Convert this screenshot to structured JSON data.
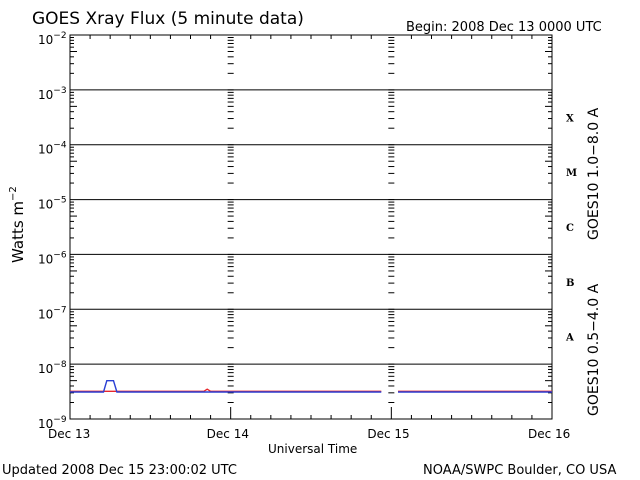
{
  "header": {
    "title": "GOES Xray Flux (5 minute data)",
    "begin": "Begin:  2008 Dec 13 0000 UTC"
  },
  "footer": {
    "updated": "Updated 2008 Dec 15 23:00:02 UTC",
    "credit": "NOAA/SWPC Boulder, CO USA"
  },
  "axes": {
    "ylabel_main": "Watts m",
    "ylabel_exp": "−2",
    "xlabel": "Universal Time",
    "x_ticks": [
      "Dec 13",
      "Dec 14",
      "Dec 15",
      "Dec 16"
    ],
    "y_ticks": [
      {
        "base": "10",
        "exp": "−2"
      },
      {
        "base": "10",
        "exp": "−3"
      },
      {
        "base": "10",
        "exp": "−4"
      },
      {
        "base": "10",
        "exp": "−5"
      },
      {
        "base": "10",
        "exp": "−6"
      },
      {
        "base": "10",
        "exp": "−7"
      },
      {
        "base": "10",
        "exp": "−8"
      },
      {
        "base": "10",
        "exp": "−9"
      }
    ],
    "flare_classes": [
      "X",
      "M",
      "C",
      "B",
      "A"
    ]
  },
  "legend": {
    "long": {
      "label": "GOES10 1.0−8.0 A",
      "color": "#e8262b"
    },
    "short": {
      "label": "GOES10 0.5−4.0 A",
      "color": "#2a3fd4"
    }
  },
  "chart_data": {
    "type": "line",
    "title": "GOES Xray Flux (5 minute data)",
    "xlabel": "Universal Time",
    "ylabel": "Watts m-2",
    "yscale": "log",
    "ylim": [
      1e-09,
      0.01
    ],
    "xlim": [
      "2008-12-13 00:00",
      "2008-12-16 00:00"
    ],
    "grid": true,
    "series": [
      {
        "name": "GOES10 1.0−8.0 A",
        "color": "#e8262b",
        "points": [
          [
            "2008-12-13 00:00",
            3.2e-09
          ],
          [
            "2008-12-13 20:00",
            3.2e-09
          ],
          [
            "2008-12-13 20:30",
            3.5e-09
          ],
          [
            "2008-12-13 21:00",
            3.2e-09
          ],
          [
            "2008-12-14 22:30",
            3.2e-09
          ],
          null,
          [
            "2008-12-15 01:00",
            3.2e-09
          ],
          [
            "2008-12-16 00:00",
            3.2e-09
          ]
        ]
      },
      {
        "name": "GOES10 0.5−4.0 A",
        "color": "#2a3fd4",
        "points": [
          [
            "2008-12-13 00:00",
            3.1e-09
          ],
          [
            "2008-12-13 05:00",
            3.1e-09
          ],
          [
            "2008-12-13 05:30",
            5e-09
          ],
          [
            "2008-12-13 06:30",
            5e-09
          ],
          [
            "2008-12-13 07:00",
            3.1e-09
          ],
          [
            "2008-12-14 22:30",
            3.1e-09
          ],
          null,
          [
            "2008-12-15 01:00",
            3.1e-09
          ],
          [
            "2008-12-16 00:00",
            3.1e-09
          ]
        ]
      }
    ]
  }
}
